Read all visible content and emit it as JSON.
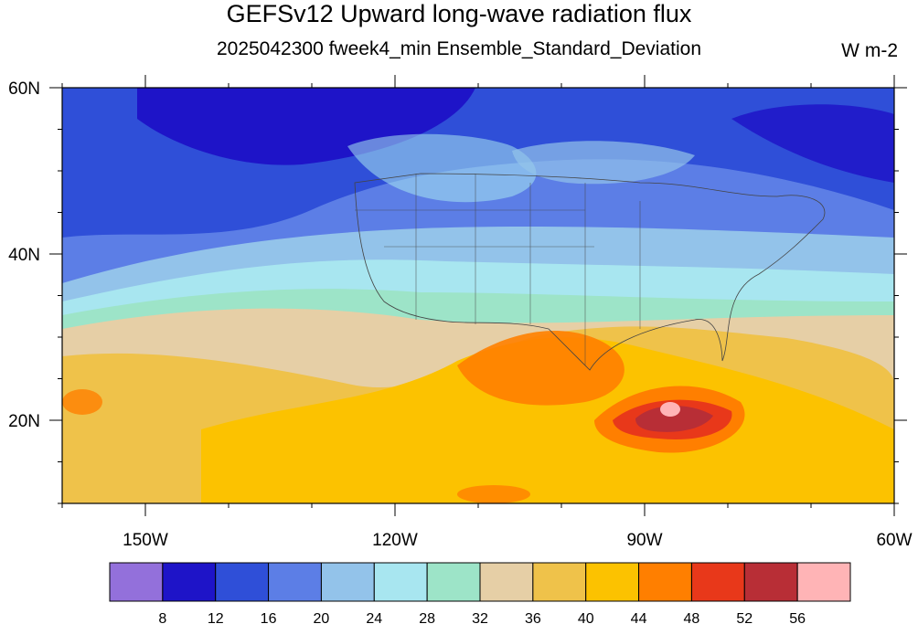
{
  "header": {
    "title": "GEFSv12 Upward long-wave radiation flux",
    "subtitle": "2025042300 fweek4_min Ensemble_Standard_Deviation",
    "units": "W m-2"
  },
  "map": {
    "lon_range": [
      -160,
      -60
    ],
    "lat_range": [
      10,
      60
    ],
    "lon_ticks": [
      {
        "value": -150,
        "label": "150W"
      },
      {
        "value": -120,
        "label": "120W"
      },
      {
        "value": -90,
        "label": "90W"
      },
      {
        "value": -60,
        "label": "60W"
      }
    ],
    "lat_ticks": [
      {
        "value": 20,
        "label": "20N"
      },
      {
        "value": 40,
        "label": "40N"
      },
      {
        "value": 60,
        "label": "60N"
      }
    ]
  },
  "colorbar": {
    "colors": [
      "#9370db",
      "#1e14c8",
      "#2f4fd8",
      "#5c7ee6",
      "#93c3ea",
      "#a8e6f0",
      "#9de4c8",
      "#e6cfa6",
      "#efc24a",
      "#fcc200",
      "#ff7f00",
      "#e8381a",
      "#b82e36",
      "#ffb4b6"
    ],
    "labels": [
      "8",
      "12",
      "16",
      "20",
      "24",
      "28",
      "32",
      "36",
      "40",
      "44",
      "48",
      "52",
      "56"
    ]
  }
}
